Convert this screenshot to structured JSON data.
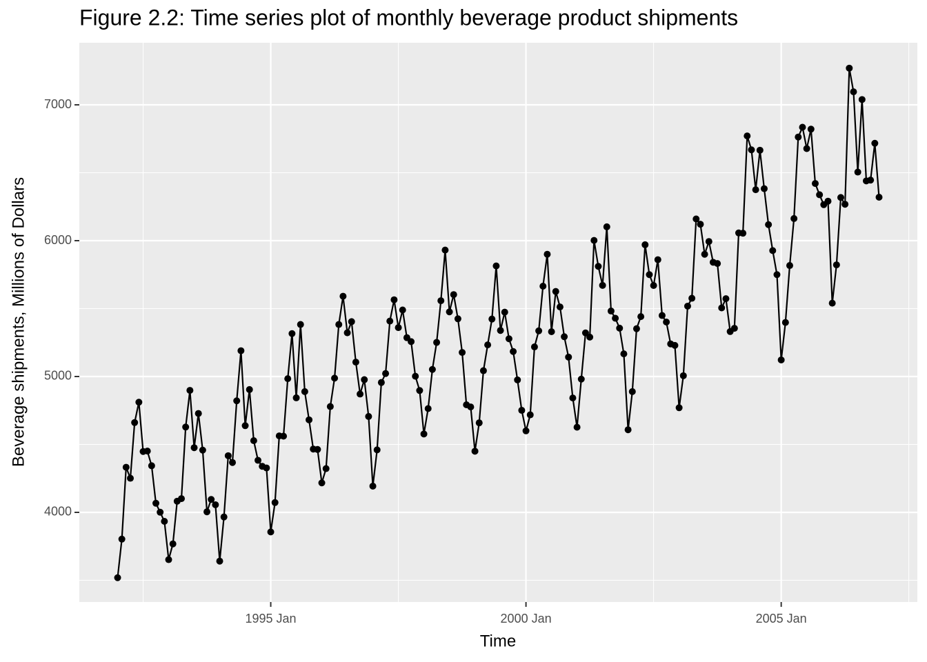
{
  "chart_data": {
    "type": "line",
    "title": "Figure 2.2: Time series plot of monthly beverage product shipments",
    "xlabel": "Time",
    "ylabel": "Beverage shipments, Millions of Dollars",
    "x": [
      "1992-01",
      "1992-02",
      "1992-03",
      "1992-04",
      "1992-05",
      "1992-06",
      "1992-07",
      "1992-08",
      "1992-09",
      "1992-10",
      "1992-11",
      "1992-12",
      "1993-01",
      "1993-02",
      "1993-03",
      "1993-04",
      "1993-05",
      "1993-06",
      "1993-07",
      "1993-08",
      "1993-09",
      "1993-10",
      "1993-11",
      "1993-12",
      "1994-01",
      "1994-02",
      "1994-03",
      "1994-04",
      "1994-05",
      "1994-06",
      "1994-07",
      "1994-08",
      "1994-09",
      "1994-10",
      "1994-11",
      "1994-12",
      "1995-01",
      "1995-02",
      "1995-03",
      "1995-04",
      "1995-05",
      "1995-06",
      "1995-07",
      "1995-08",
      "1995-09",
      "1995-10",
      "1995-11",
      "1995-12",
      "1996-01",
      "1996-02",
      "1996-03",
      "1996-04",
      "1996-05",
      "1996-06",
      "1996-07",
      "1996-08",
      "1996-09",
      "1996-10",
      "1996-11",
      "1996-12",
      "1997-01",
      "1997-02",
      "1997-03",
      "1997-04",
      "1997-05",
      "1997-06",
      "1997-07",
      "1997-08",
      "1997-09",
      "1997-10",
      "1997-11",
      "1997-12",
      "1998-01",
      "1998-02",
      "1998-03",
      "1998-04",
      "1998-05",
      "1998-06",
      "1998-07",
      "1998-08",
      "1998-09",
      "1998-10",
      "1998-11",
      "1998-12",
      "1999-01",
      "1999-02",
      "1999-03",
      "1999-04",
      "1999-05",
      "1999-06",
      "1999-07",
      "1999-08",
      "1999-09",
      "1999-10",
      "1999-11",
      "1999-12",
      "2000-01",
      "2000-02",
      "2000-03",
      "2000-04",
      "2000-05",
      "2000-06",
      "2000-07",
      "2000-08",
      "2000-09",
      "2000-10",
      "2000-11",
      "2000-12",
      "2001-01",
      "2001-02",
      "2001-03",
      "2001-04",
      "2001-05",
      "2001-06",
      "2001-07",
      "2001-08",
      "2001-09",
      "2001-10",
      "2001-11",
      "2001-12",
      "2002-01",
      "2002-02",
      "2002-03",
      "2002-04",
      "2002-05",
      "2002-06",
      "2002-07",
      "2002-08",
      "2002-09",
      "2002-10",
      "2002-11",
      "2002-12",
      "2003-01",
      "2003-02",
      "2003-03",
      "2003-04",
      "2003-05",
      "2003-06",
      "2003-07",
      "2003-08",
      "2003-09",
      "2003-10",
      "2003-11",
      "2003-12",
      "2004-01",
      "2004-02",
      "2004-03",
      "2004-04",
      "2004-05",
      "2004-06",
      "2004-07",
      "2004-08",
      "2004-09",
      "2004-10",
      "2004-11",
      "2004-12",
      "2005-01",
      "2005-02",
      "2005-03",
      "2005-04",
      "2005-05",
      "2005-06",
      "2005-07",
      "2005-08",
      "2005-09",
      "2005-10",
      "2005-11",
      "2005-12",
      "2006-01",
      "2006-02",
      "2006-03",
      "2006-04",
      "2006-05",
      "2006-06",
      "2006-07",
      "2006-08",
      "2006-09",
      "2006-10",
      "2006-11",
      "2006-12"
    ],
    "series": [
      {
        "color": "#000000",
        "values": [
          3519,
          3803,
          4332,
          4251,
          4661,
          4811,
          4448,
          4451,
          4343,
          4067,
          4001,
          3934,
          3652,
          3768,
          4082,
          4101,
          4628,
          4898,
          4476,
          4728,
          4458,
          4004,
          4095,
          4056,
          3641,
          3966,
          4417,
          4367,
          4821,
          5190,
          4638,
          4904,
          4528,
          4383,
          4339,
          4327,
          3856,
          4072,
          4563,
          4561,
          4984,
          5316,
          4843,
          5383,
          4889,
          4681,
          4466,
          4463,
          4217,
          4322,
          4779,
          4988,
          5383,
          5591,
          5322,
          5404,
          5106,
          4871,
          4977,
          4706,
          4193,
          4460,
          4956,
          5022,
          5408,
          5565,
          5360,
          5490,
          5286,
          5257,
          5002,
          4897,
          4577,
          4764,
          5052,
          5251,
          5558,
          5931,
          5476,
          5603,
          5425,
          5177,
          4792,
          4776,
          4450,
          4659,
          5043,
          5233,
          5423,
          5814,
          5339,
          5474,
          5278,
          5184,
          4975,
          4751,
          4600,
          4718,
          5218,
          5336,
          5665,
          5900,
          5330,
          5626,
          5512,
          5293,
          5143,
          4842,
          4627,
          4981,
          5321,
          5290,
          6002,
          5811,
          5671,
          6102,
          5482,
          5429,
          5356,
          5167,
          4608,
          4889,
          5352,
          5441,
          5970,
          5750,
          5670,
          5860,
          5449,
          5401,
          5240,
          5229,
          4770,
          5006,
          5518,
          5576,
          6160,
          6121,
          5900,
          5994,
          5841,
          5832,
          5505,
          5573,
          5331,
          5355,
          6057,
          6055,
          6771,
          6669,
          6375,
          6666,
          6383,
          6118,
          5927,
          5750,
          5122,
          5398,
          5817,
          6163,
          6763,
          6835,
          6678,
          6821,
          6421,
          6338,
          6265,
          6291,
          5540,
          5822,
          6318,
          6268,
          7270,
          7096,
          6505,
          7039,
          6440,
          6446,
          6717,
          6320
        ]
      }
    ],
    "xlim": [
      "1991-04",
      "2007-09"
    ],
    "xticks": [
      {
        "value": "1995-01",
        "label": "1995 Jan"
      },
      {
        "value": "2000-01",
        "label": "2000 Jan"
      },
      {
        "value": "2005-01",
        "label": "2005 Jan"
      }
    ],
    "xminor": [
      "1992-07",
      "1997-07",
      "2002-07",
      "2007-07"
    ],
    "ylim": [
      3340,
      7457
    ],
    "yticks": [
      4000,
      5000,
      6000,
      7000
    ],
    "yminor": [
      3500,
      4500,
      5500,
      6500
    ],
    "grid": true
  }
}
